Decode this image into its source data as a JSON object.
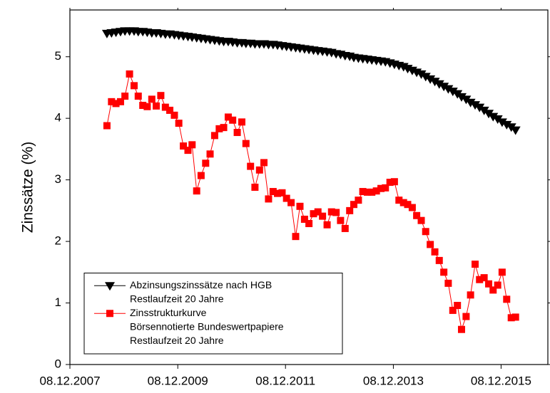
{
  "chart_data": {
    "type": "line",
    "ylabel": "Zinssätze (%)",
    "x": [
      "2008-08-15",
      "2008-09-15",
      "2008-10-15",
      "2008-11-15",
      "2008-12-15",
      "2009-01-15",
      "2009-02-15",
      "2009-03-15",
      "2009-04-15",
      "2009-05-15",
      "2009-06-15",
      "2009-07-15",
      "2009-08-15",
      "2009-09-15",
      "2009-10-15",
      "2009-11-15",
      "2009-12-15",
      "2010-01-15",
      "2010-02-15",
      "2010-03-15",
      "2010-04-15",
      "2010-05-15",
      "2010-06-15",
      "2010-07-15",
      "2010-08-15",
      "2010-09-15",
      "2010-10-15",
      "2010-11-15",
      "2010-12-15",
      "2011-01-15",
      "2011-02-15",
      "2011-03-15",
      "2011-04-15",
      "2011-05-15",
      "2011-06-15",
      "2011-07-15",
      "2011-08-15",
      "2011-09-15",
      "2011-10-15",
      "2011-11-15",
      "2011-12-15",
      "2012-01-15",
      "2012-02-15",
      "2012-03-15",
      "2012-04-15",
      "2012-05-15",
      "2012-06-15",
      "2012-07-15",
      "2012-08-15",
      "2012-09-15",
      "2012-10-15",
      "2012-11-15",
      "2012-12-15",
      "2013-01-15",
      "2013-02-15",
      "2013-03-15",
      "2013-04-15",
      "2013-05-15",
      "2013-06-15",
      "2013-07-15",
      "2013-08-15",
      "2013-09-15",
      "2013-10-15",
      "2013-11-15",
      "2013-12-15",
      "2014-01-15",
      "2014-02-15",
      "2014-03-15",
      "2014-04-15",
      "2014-05-15",
      "2014-06-15",
      "2014-07-15",
      "2014-08-15",
      "2014-09-15",
      "2014-10-15",
      "2014-11-15",
      "2014-12-15",
      "2015-01-15",
      "2015-02-15",
      "2015-03-15",
      "2015-04-15",
      "2015-05-15",
      "2015-06-15",
      "2015-07-15",
      "2015-08-15",
      "2015-09-15",
      "2015-10-15",
      "2015-11-15",
      "2015-12-15",
      "2016-01-15",
      "2016-02-15",
      "2016-03-15"
    ],
    "series": [
      {
        "name": [
          "Abzinsungszinssätze nach HGB",
          "Restlaufzeit 20 Jahre"
        ],
        "color": "#000000",
        "marker": "triangle-down",
        "values": [
          5.38,
          5.39,
          5.4,
          5.41,
          5.42,
          5.42,
          5.42,
          5.41,
          5.41,
          5.4,
          5.39,
          5.39,
          5.38,
          5.37,
          5.37,
          5.36,
          5.35,
          5.34,
          5.33,
          5.32,
          5.31,
          5.3,
          5.29,
          5.28,
          5.27,
          5.26,
          5.25,
          5.25,
          5.24,
          5.23,
          5.23,
          5.22,
          5.22,
          5.21,
          5.21,
          5.21,
          5.2,
          5.2,
          5.19,
          5.18,
          5.17,
          5.16,
          5.15,
          5.14,
          5.13,
          5.12,
          5.11,
          5.1,
          5.09,
          5.08,
          5.07,
          5.05,
          5.04,
          5.02,
          5.01,
          4.99,
          4.98,
          4.97,
          4.96,
          4.95,
          4.94,
          4.93,
          4.92,
          4.9,
          4.88,
          4.86,
          4.84,
          4.81,
          4.78,
          4.75,
          4.72,
          4.68,
          4.64,
          4.6,
          4.56,
          4.52,
          4.48,
          4.44,
          4.4,
          4.35,
          4.31,
          4.26,
          4.22,
          4.18,
          4.13,
          4.08,
          4.03,
          3.99,
          3.94,
          3.9,
          3.86,
          3.81
        ]
      },
      {
        "name": [
          "Zinsstrukturkurve",
          "Börsennotierte Bundeswertpapiere",
          "Restlaufzeit 20 Jahre"
        ],
        "color": "#ff0000",
        "marker": "square",
        "values": [
          3.88,
          4.27,
          4.24,
          4.27,
          4.36,
          4.72,
          4.53,
          4.36,
          4.21,
          4.19,
          4.31,
          4.2,
          4.37,
          4.18,
          4.13,
          4.05,
          3.92,
          3.55,
          3.48,
          3.57,
          2.82,
          3.07,
          3.27,
          3.42,
          3.72,
          3.83,
          3.85,
          4.02,
          3.97,
          3.77,
          3.94,
          3.59,
          3.22,
          2.88,
          3.16,
          3.28,
          2.69,
          2.81,
          2.78,
          2.79,
          2.7,
          2.63,
          2.08,
          2.57,
          2.36,
          2.29,
          2.45,
          2.48,
          2.41,
          2.27,
          2.48,
          2.47,
          2.34,
          2.21,
          2.5,
          2.6,
          2.67,
          2.81,
          2.8,
          2.8,
          2.82,
          2.86,
          2.87,
          2.96,
          2.97,
          2.67,
          2.63,
          2.6,
          2.55,
          2.42,
          2.34,
          2.16,
          1.95,
          1.83,
          1.69,
          1.5,
          1.32,
          0.88,
          0.96,
          0.57,
          0.78,
          1.13,
          1.63,
          1.38,
          1.41,
          1.31,
          1.21,
          1.29,
          1.5,
          1.06,
          0.76,
          0.77
        ]
      }
    ],
    "xlim": [
      "2007-12-08",
      "2016-10-20"
    ],
    "xticks": [
      {
        "value": "2007-12-08",
        "label": "08.12.2007"
      },
      {
        "value": "2009-12-08",
        "label": "08.12.2009"
      },
      {
        "value": "2011-12-08",
        "label": "08.12.2011"
      },
      {
        "value": "2013-12-08",
        "label": "08.12.2013"
      },
      {
        "value": "2015-12-08",
        "label": "08.12.2015"
      }
    ],
    "ylim": [
      0,
      5.76
    ],
    "yticks": [
      0,
      1,
      2,
      3,
      4,
      5
    ],
    "legend": "lower left"
  }
}
